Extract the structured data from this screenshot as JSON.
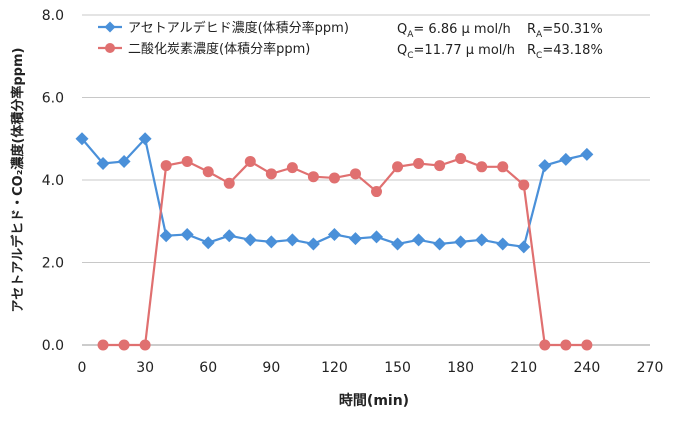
{
  "chart_data": {
    "type": "line",
    "xlabel": "時間(min)",
    "ylabel": "アセトアルデヒド・CO₂濃度(体積分率ppm)",
    "xlim": [
      0,
      270
    ],
    "ylim": [
      0,
      8
    ],
    "xticks": [
      0,
      30,
      60,
      90,
      120,
      150,
      180,
      210,
      240,
      270
    ],
    "yticks": [
      0,
      2,
      4,
      6,
      8
    ],
    "ytick_labels": [
      "0.0",
      "2.0",
      "4.0",
      "6.0",
      "8.0"
    ],
    "grid": "horizontal",
    "legend_position": "top-left",
    "annotations": {
      "qa": "Q",
      "qa_sub": "A",
      "qa_value": "= 6.86 μ mol/h",
      "ra": "R",
      "ra_sub": "A",
      "ra_value": "=50.31%",
      "qc": "Q",
      "qc_sub": "C",
      "qc_value": "=11.77 μ mol/h",
      "rc": "R",
      "rc_sub": "C",
      "rc_value": "=43.18%"
    },
    "series": [
      {
        "name": "アセトアルデヒド濃度(体積分率ppm)",
        "color": "#4a90d9",
        "marker": "diamond",
        "x": [
          0,
          10,
          20,
          30,
          40,
          50,
          60,
          70,
          80,
          90,
          100,
          110,
          120,
          130,
          140,
          150,
          160,
          170,
          180,
          190,
          200,
          210,
          220,
          230,
          240
        ],
        "values": [
          5.0,
          4.4,
          4.45,
          5.0,
          2.65,
          2.68,
          2.48,
          2.65,
          2.55,
          2.5,
          2.55,
          2.45,
          2.68,
          2.58,
          2.62,
          2.45,
          2.55,
          2.45,
          2.5,
          2.55,
          2.45,
          2.38,
          4.35,
          4.5,
          4.62
        ]
      },
      {
        "name": "二酸化炭素濃度(体積分率ppm)",
        "color": "#e07070",
        "marker": "circle",
        "x": [
          10,
          20,
          30,
          40,
          50,
          60,
          70,
          80,
          90,
          100,
          110,
          120,
          130,
          140,
          150,
          160,
          170,
          180,
          190,
          200,
          210,
          220,
          230,
          240
        ],
        "values": [
          0,
          0,
          0,
          4.35,
          4.45,
          4.2,
          3.92,
          4.45,
          4.15,
          4.3,
          4.08,
          4.05,
          4.15,
          3.72,
          4.32,
          4.4,
          4.35,
          4.52,
          4.32,
          4.32,
          3.88,
          0,
          0,
          0
        ]
      }
    ]
  }
}
